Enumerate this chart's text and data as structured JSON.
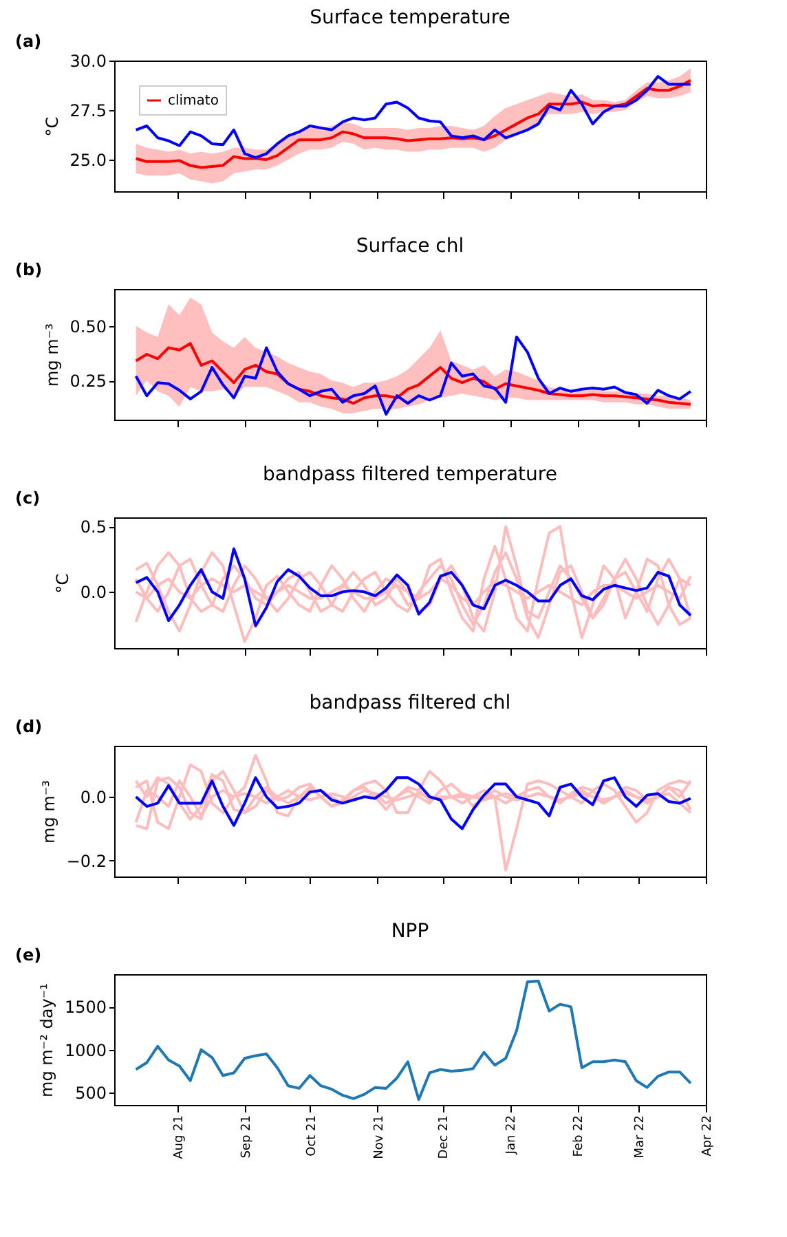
{
  "chart_data": [
    {
      "type": "line",
      "title": "Surface temperature",
      "ylabel": "°C",
      "annotations": [
        "(a)"
      ],
      "legend": "top left",
      "tick_labels": "y",
      "grid": false,
      "xlim": [
        "2021-07-03",
        "2022-04-01"
      ],
      "ylim": [
        23.4,
        30.0
      ],
      "yticks": [
        {
          "value": 25.0,
          "label": "25.0"
        },
        {
          "value": 27.5,
          "label": "27.5"
        },
        {
          "value": 30.0,
          "label": "30.0"
        }
      ],
      "xticks": [
        {
          "value": "2021-08-01",
          "label": null
        },
        {
          "value": "2021-09-01",
          "label": null
        },
        {
          "value": "2021-10-01",
          "label": null
        },
        {
          "value": "2021-11-01",
          "label": null
        },
        {
          "value": "2021-12-01",
          "label": null
        },
        {
          "value": "2022-01-01",
          "label": null
        },
        {
          "value": "2022-02-01",
          "label": null
        },
        {
          "value": "2022-03-01",
          "label": null
        },
        {
          "value": "2022-04-01",
          "label": null
        }
      ],
      "x": [
        "2021-07-13",
        "2021-07-18",
        "2021-07-23",
        "2021-07-28",
        "2021-08-02",
        "2021-08-07",
        "2021-08-12",
        "2021-08-17",
        "2021-08-22",
        "2021-08-27",
        "2021-09-01",
        "2021-09-06",
        "2021-09-11",
        "2021-09-16",
        "2021-09-21",
        "2021-09-26",
        "2021-10-01",
        "2021-10-06",
        "2021-10-11",
        "2021-10-16",
        "2021-10-21",
        "2021-10-26",
        "2021-10-31",
        "2021-11-05",
        "2021-11-10",
        "2021-11-15",
        "2021-11-20",
        "2021-11-25",
        "2021-11-30",
        "2021-12-05",
        "2021-12-10",
        "2021-12-15",
        "2021-12-20",
        "2021-12-25",
        "2021-12-30",
        "2022-01-04",
        "2022-01-09",
        "2022-01-14",
        "2022-01-19",
        "2022-01-24",
        "2022-01-29",
        "2022-02-03",
        "2022-02-08",
        "2022-02-13",
        "2022-02-18",
        "2022-02-23",
        "2022-02-28",
        "2022-03-05",
        "2022-03-10",
        "2022-03-15",
        "2022-03-20",
        "2022-03-25"
      ],
      "series": [
        {
          "name": "climato",
          "color": "#ff0000",
          "values": [
            25.05,
            24.9,
            24.9,
            24.9,
            24.95,
            24.7,
            24.6,
            24.65,
            24.7,
            25.15,
            25.05,
            25.05,
            25.0,
            25.2,
            25.6,
            26.0,
            26.0,
            26.0,
            26.1,
            26.4,
            26.3,
            26.1,
            26.1,
            26.1,
            26.05,
            25.95,
            26.0,
            26.05,
            26.05,
            26.1,
            26.05,
            26.1,
            26.0,
            26.2,
            26.5,
            26.8,
            27.1,
            27.3,
            27.8,
            27.8,
            27.8,
            27.9,
            27.7,
            27.75,
            27.7,
            27.8,
            28.2,
            28.6,
            28.5,
            28.5,
            28.7,
            29.0
          ],
          "upper": [
            25.8,
            25.6,
            25.5,
            25.4,
            25.5,
            25.3,
            25.4,
            25.3,
            25.4,
            25.6,
            25.6,
            25.5,
            25.5,
            25.8,
            26.2,
            26.5,
            26.6,
            26.6,
            26.7,
            26.9,
            26.8,
            26.6,
            26.6,
            26.6,
            26.6,
            26.5,
            26.6,
            26.6,
            26.7,
            26.7,
            26.6,
            26.5,
            26.7,
            27.2,
            27.6,
            27.8,
            28.0,
            28.2,
            28.4,
            28.3,
            28.2,
            28.3,
            28.0,
            28.0,
            27.9,
            28.0,
            28.5,
            28.9,
            28.9,
            29.0,
            29.2,
            29.6
          ],
          "lower": [
            24.3,
            24.2,
            24.2,
            24.2,
            24.3,
            24.0,
            23.9,
            23.8,
            23.9,
            24.3,
            24.4,
            24.5,
            24.5,
            24.7,
            25.0,
            25.3,
            25.5,
            25.5,
            25.6,
            25.9,
            25.8,
            25.5,
            25.6,
            25.5,
            25.5,
            25.4,
            25.4,
            25.5,
            25.5,
            25.6,
            25.6,
            25.6,
            25.4,
            25.6,
            26.0,
            26.2,
            26.5,
            26.9,
            27.3,
            27.3,
            27.3,
            27.4,
            27.3,
            27.4,
            27.4,
            27.5,
            27.9,
            28.2,
            28.1,
            28.1,
            28.2,
            28.4
          ]
        },
        {
          "color": "#0000ff",
          "values": [
            26.5,
            26.7,
            26.1,
            25.95,
            25.7,
            26.4,
            26.2,
            25.8,
            25.75,
            26.5,
            25.3,
            25.1,
            25.3,
            25.8,
            26.2,
            26.4,
            26.7,
            26.6,
            26.5,
            26.9,
            27.1,
            27.0,
            27.1,
            27.8,
            27.9,
            27.6,
            27.1,
            26.95,
            26.9,
            26.2,
            26.1,
            26.2,
            26.0,
            26.5,
            26.1,
            26.3,
            26.5,
            26.8,
            27.7,
            27.5,
            28.5,
            27.8,
            26.8,
            27.4,
            27.7,
            27.7,
            28.0,
            28.5,
            29.2,
            28.8,
            28.8,
            28.8
          ]
        }
      ]
    },
    {
      "type": "line",
      "title": "Surface chl",
      "ylabel": "mg m⁻³",
      "annotations": [
        "(b)"
      ],
      "tick_labels": "y",
      "grid": false,
      "xlim": [
        "2021-07-03",
        "2022-04-01"
      ],
      "ylim": [
        0.07,
        0.67
      ],
      "yticks": [
        {
          "value": 0.25,
          "label": "0.25"
        },
        {
          "value": 0.5,
          "label": "0.50"
        }
      ],
      "xticks": [
        {
          "value": "2021-08-01",
          "label": null
        },
        {
          "value": "2021-09-01",
          "label": null
        },
        {
          "value": "2021-10-01",
          "label": null
        },
        {
          "value": "2021-11-01",
          "label": null
        },
        {
          "value": "2021-12-01",
          "label": null
        },
        {
          "value": "2022-01-01",
          "label": null
        },
        {
          "value": "2022-02-01",
          "label": null
        },
        {
          "value": "2022-03-01",
          "label": null
        },
        {
          "value": "2022-04-01",
          "label": null
        }
      ],
      "x": [
        "2021-07-13",
        "2021-07-18",
        "2021-07-23",
        "2021-07-28",
        "2021-08-02",
        "2021-08-07",
        "2021-08-12",
        "2021-08-17",
        "2021-08-22",
        "2021-08-27",
        "2021-09-01",
        "2021-09-06",
        "2021-09-11",
        "2021-09-16",
        "2021-09-21",
        "2021-09-26",
        "2021-10-01",
        "2021-10-06",
        "2021-10-11",
        "2021-10-16",
        "2021-10-21",
        "2021-10-26",
        "2021-10-31",
        "2021-11-05",
        "2021-11-10",
        "2021-11-15",
        "2021-11-20",
        "2021-11-25",
        "2021-11-30",
        "2021-12-05",
        "2021-12-10",
        "2021-12-15",
        "2021-12-20",
        "2021-12-25",
        "2021-12-30",
        "2022-01-04",
        "2022-01-09",
        "2022-01-14",
        "2022-01-19",
        "2022-01-24",
        "2022-01-29",
        "2022-02-03",
        "2022-02-08",
        "2022-02-13",
        "2022-02-18",
        "2022-02-23",
        "2022-02-28",
        "2022-03-05",
        "2022-03-10",
        "2022-03-15",
        "2022-03-20",
        "2022-03-25"
      ],
      "series": [
        {
          "color": "#ff0000",
          "values": [
            0.34,
            0.37,
            0.35,
            0.4,
            0.39,
            0.42,
            0.32,
            0.34,
            0.29,
            0.24,
            0.3,
            0.32,
            0.29,
            0.28,
            0.235,
            0.21,
            0.2,
            0.18,
            0.17,
            0.165,
            0.145,
            0.17,
            0.18,
            0.18,
            0.17,
            0.21,
            0.23,
            0.27,
            0.31,
            0.26,
            0.24,
            0.26,
            0.245,
            0.21,
            0.235,
            0.225,
            0.215,
            0.205,
            0.19,
            0.185,
            0.18,
            0.18,
            0.185,
            0.18,
            0.18,
            0.175,
            0.17,
            0.165,
            0.16,
            0.15,
            0.145,
            0.14
          ],
          "upper": [
            0.5,
            0.47,
            0.45,
            0.6,
            0.55,
            0.63,
            0.6,
            0.47,
            0.43,
            0.4,
            0.45,
            0.4,
            0.38,
            0.36,
            0.33,
            0.31,
            0.29,
            0.28,
            0.25,
            0.24,
            0.22,
            0.24,
            0.24,
            0.25,
            0.27,
            0.3,
            0.35,
            0.4,
            0.48,
            0.34,
            0.32,
            0.3,
            0.32,
            0.27,
            0.3,
            0.29,
            0.27,
            0.25,
            0.22,
            0.21,
            0.2,
            0.2,
            0.21,
            0.2,
            0.2,
            0.2,
            0.19,
            0.19,
            0.18,
            0.18,
            0.17,
            0.16
          ],
          "lower": [
            0.18,
            0.25,
            0.2,
            0.18,
            0.13,
            0.22,
            0.2,
            0.2,
            0.21,
            0.18,
            0.22,
            0.22,
            0.22,
            0.2,
            0.18,
            0.15,
            0.15,
            0.13,
            0.12,
            0.1,
            0.1,
            0.11,
            0.12,
            0.12,
            0.12,
            0.13,
            0.14,
            0.16,
            0.17,
            0.18,
            0.19,
            0.18,
            0.17,
            0.16,
            0.17,
            0.17,
            0.16,
            0.16,
            0.16,
            0.16,
            0.16,
            0.16,
            0.16,
            0.15,
            0.15,
            0.15,
            0.14,
            0.14,
            0.13,
            0.12,
            0.12,
            0.12
          ]
        },
        {
          "color": "#0000ff",
          "values": [
            0.27,
            0.18,
            0.24,
            0.235,
            0.205,
            0.165,
            0.2,
            0.31,
            0.23,
            0.17,
            0.27,
            0.26,
            0.4,
            0.29,
            0.235,
            0.21,
            0.18,
            0.2,
            0.21,
            0.15,
            0.18,
            0.19,
            0.225,
            0.095,
            0.18,
            0.145,
            0.18,
            0.16,
            0.18,
            0.33,
            0.27,
            0.28,
            0.225,
            0.215,
            0.15,
            0.45,
            0.38,
            0.26,
            0.19,
            0.215,
            0.2,
            0.21,
            0.215,
            0.21,
            0.22,
            0.195,
            0.185,
            0.145,
            0.205,
            0.18,
            0.165,
            0.2
          ]
        }
      ]
    },
    {
      "type": "line",
      "title": "bandpass filtered temperature",
      "ylabel": "°C",
      "annotations": [
        "(c)"
      ],
      "tick_labels": "y",
      "grid": false,
      "xlim": [
        "2021-07-03",
        "2022-04-01"
      ],
      "ylim": [
        -0.43,
        0.57
      ],
      "yticks": [
        {
          "value": 0.0,
          "label": "0.0"
        },
        {
          "value": 0.5,
          "label": "0.5"
        }
      ],
      "xticks": [
        {
          "value": "2021-08-01",
          "label": null
        },
        {
          "value": "2021-09-01",
          "label": null
        },
        {
          "value": "2021-10-01",
          "label": null
        },
        {
          "value": "2021-11-01",
          "label": null
        },
        {
          "value": "2021-12-01",
          "label": null
        },
        {
          "value": "2022-01-01",
          "label": null
        },
        {
          "value": "2022-02-01",
          "label": null
        },
        {
          "value": "2022-03-01",
          "label": null
        },
        {
          "value": "2022-04-01",
          "label": null
        }
      ],
      "x": [
        "2021-07-13",
        "2021-07-18",
        "2021-07-23",
        "2021-07-28",
        "2021-08-02",
        "2021-08-07",
        "2021-08-12",
        "2021-08-17",
        "2021-08-22",
        "2021-08-27",
        "2021-09-01",
        "2021-09-06",
        "2021-09-11",
        "2021-09-16",
        "2021-09-21",
        "2021-09-26",
        "2021-10-01",
        "2021-10-06",
        "2021-10-11",
        "2021-10-16",
        "2021-10-21",
        "2021-10-26",
        "2021-10-31",
        "2021-11-05",
        "2021-11-10",
        "2021-11-15",
        "2021-11-20",
        "2021-11-25",
        "2021-11-30",
        "2021-12-05",
        "2021-12-10",
        "2021-12-15",
        "2021-12-20",
        "2021-12-25",
        "2021-12-30",
        "2022-01-04",
        "2022-01-09",
        "2022-01-14",
        "2022-01-19",
        "2022-01-24",
        "2022-01-29",
        "2022-02-03",
        "2022-02-08",
        "2022-02-13",
        "2022-02-18",
        "2022-02-23",
        "2022-02-28",
        "2022-03-05",
        "2022-03-10",
        "2022-03-15",
        "2022-03-20",
        "2022-03-25"
      ],
      "series": [
        {
          "color": "#ffbcbc",
          "values": [
            0.17,
            0.22,
            0.05,
            -0.15,
            -0.3,
            -0.1,
            0.15,
            0.3,
            0.2,
            -0.1,
            -0.38,
            -0.2,
            0.05,
            0.12,
            0.0,
            -0.1,
            -0.15,
            0.05,
            0.2,
            0.1,
            -0.05,
            -0.15,
            0.0,
            0.1,
            0.05,
            -0.1,
            -0.05,
            0.2,
            0.25,
            0.0,
            -0.2,
            -0.3,
            0.1,
            0.35,
            0.1,
            -0.2,
            -0.3,
            0.1,
            0.45,
            0.5,
            0.0,
            -0.35,
            -0.1,
            0.2,
            0.1,
            -0.2,
            0.0,
            0.25,
            0.2,
            -0.1,
            -0.25,
            -0.2
          ]
        },
        {
          "color": "#ffbcbc",
          "values": [
            -0.23,
            0.0,
            0.2,
            0.3,
            0.2,
            -0.05,
            -0.15,
            -0.1,
            0.1,
            0.2,
            0.1,
            -0.05,
            -0.1,
            0.0,
            0.1,
            0.15,
            0.0,
            -0.15,
            -0.1,
            0.05,
            0.15,
            0.05,
            -0.1,
            -0.05,
            0.1,
            0.0,
            -0.15,
            -0.1,
            0.1,
            0.2,
            0.05,
            -0.2,
            -0.3,
            0.0,
            0.5,
            0.2,
            -0.15,
            -0.2,
            0.0,
            0.2,
            0.1,
            -0.05,
            -0.2,
            -0.05,
            0.1,
            0.15,
            0.0,
            -0.15,
            0.1,
            0.25,
            0.1,
            -0.2
          ]
        },
        {
          "color": "#ffbcbc",
          "values": [
            0.0,
            -0.05,
            0.05,
            0.1,
            0.0,
            -0.05,
            0.05,
            0.1,
            0.05,
            0.0,
            0.05,
            0.0,
            -0.05,
            0.0,
            0.05,
            0.0,
            -0.05,
            -0.05,
            0.0,
            0.05,
            0.0,
            -0.05,
            -0.05,
            0.0,
            0.05,
            0.0,
            -0.05,
            0.0,
            0.1,
            0.05,
            -0.05,
            -0.1,
            0.0,
            0.08,
            0.05,
            0.0,
            -0.05,
            0.0,
            0.05,
            0.0,
            -0.05,
            -0.1,
            0.0,
            0.05,
            0.05,
            0.0,
            -0.05,
            0.0,
            0.05,
            0.0,
            -0.05,
            0.12
          ]
        },
        {
          "color": "#ffbcbc",
          "values": [
            0.1,
            -0.05,
            -0.15,
            0.0,
            0.2,
            0.25,
            0.05,
            -0.1,
            -0.15,
            0.05,
            0.2,
            0.1,
            -0.05,
            -0.15,
            -0.05,
            0.1,
            0.15,
            0.05,
            -0.1,
            -0.15,
            0.0,
            0.1,
            0.15,
            0.0,
            -0.1,
            -0.15,
            0.0,
            0.1,
            0.2,
            0.1,
            -0.1,
            -0.25,
            -0.1,
            0.15,
            0.3,
            0.1,
            -0.2,
            -0.35,
            -0.1,
            0.15,
            0.2,
            0.0,
            -0.2,
            -0.1,
            0.1,
            0.25,
            0.1,
            -0.1,
            -0.25,
            -0.1,
            0.1,
            0.05
          ]
        },
        {
          "color": "#0000ff",
          "values": [
            0.07,
            0.11,
            0.0,
            -0.22,
            -0.1,
            0.05,
            0.17,
            0.0,
            -0.05,
            0.33,
            0.1,
            -0.26,
            -0.12,
            0.08,
            0.17,
            0.12,
            0.03,
            -0.03,
            -0.03,
            0.0,
            0.01,
            0.0,
            -0.03,
            0.03,
            0.13,
            0.05,
            -0.17,
            -0.08,
            0.12,
            0.15,
            0.05,
            -0.1,
            -0.13,
            0.05,
            0.09,
            0.05,
            0.0,
            -0.07,
            -0.07,
            0.05,
            0.1,
            -0.03,
            -0.06,
            0.02,
            0.05,
            0.03,
            0.01,
            0.03,
            0.15,
            0.12,
            -0.1,
            -0.18
          ]
        }
      ]
    },
    {
      "type": "line",
      "title": "bandpass filtered chl",
      "ylabel": "mg m⁻³",
      "annotations": [
        "(d)"
      ],
      "tick_labels": "y",
      "grid": false,
      "xlim": [
        "2021-07-03",
        "2022-04-01"
      ],
      "ylim": [
        -0.25,
        0.16
      ],
      "yticks": [
        {
          "value": -0.2,
          "label": "−0.2"
        },
        {
          "value": 0.0,
          "label": "0.0"
        }
      ],
      "xticks": [
        {
          "value": "2021-08-01",
          "label": null
        },
        {
          "value": "2021-09-01",
          "label": null
        },
        {
          "value": "2021-10-01",
          "label": null
        },
        {
          "value": "2021-11-01",
          "label": null
        },
        {
          "value": "2021-12-01",
          "label": null
        },
        {
          "value": "2022-01-01",
          "label": null
        },
        {
          "value": "2022-02-01",
          "label": null
        },
        {
          "value": "2022-03-01",
          "label": null
        },
        {
          "value": "2022-04-01",
          "label": null
        }
      ],
      "x": [
        "2021-07-13",
        "2021-07-18",
        "2021-07-23",
        "2021-07-28",
        "2021-08-02",
        "2021-08-07",
        "2021-08-12",
        "2021-08-17",
        "2021-08-22",
        "2021-08-27",
        "2021-09-01",
        "2021-09-06",
        "2021-09-11",
        "2021-09-16",
        "2021-09-21",
        "2021-09-26",
        "2021-10-01",
        "2021-10-06",
        "2021-10-11",
        "2021-10-16",
        "2021-10-21",
        "2021-10-26",
        "2021-10-31",
        "2021-11-05",
        "2021-11-10",
        "2021-11-15",
        "2021-11-20",
        "2021-11-25",
        "2021-11-30",
        "2021-12-05",
        "2021-12-10",
        "2021-12-15",
        "2021-12-20",
        "2021-12-25",
        "2021-12-30",
        "2022-01-04",
        "2022-01-09",
        "2022-01-14",
        "2022-01-19",
        "2022-01-24",
        "2022-01-29",
        "2022-02-03",
        "2022-02-08",
        "2022-02-13",
        "2022-02-18",
        "2022-02-23",
        "2022-02-28",
        "2022-03-05",
        "2022-03-10",
        "2022-03-15",
        "2022-03-20",
        "2022-03-25"
      ],
      "series": [
        {
          "color": "#ffbcbc",
          "values": [
            0.03,
            0.05,
            -0.08,
            -0.1,
            0.0,
            0.1,
            0.08,
            -0.02,
            -0.05,
            0.0,
            0.03,
            0.13,
            0.05,
            -0.05,
            -0.06,
            0.0,
            0.03,
            0.0,
            -0.03,
            -0.02,
            0.02,
            0.03,
            0.0,
            -0.04,
            0.0,
            0.03,
            0.02,
            -0.01,
            0.0,
            0.0,
            0.0,
            0.0,
            0.0,
            0.0,
            -0.23,
            -0.1,
            0.04,
            0.05,
            0.04,
            0.02,
            0.0,
            -0.02,
            0.02,
            0.04,
            0.02,
            -0.03,
            -0.08,
            -0.05,
            0.02,
            0.04,
            0.05,
            0.04
          ]
        },
        {
          "color": "#ffbcbc",
          "values": [
            -0.09,
            -0.1,
            0.05,
            0.06,
            0.03,
            -0.05,
            -0.07,
            0.05,
            0.08,
            0.02,
            -0.05,
            -0.03,
            0.02,
            -0.01,
            0.0,
            0.03,
            0.04,
            0.0,
            -0.03,
            -0.01,
            0.02,
            0.04,
            0.05,
            0.02,
            -0.05,
            -0.05,
            0.02,
            0.08,
            0.05,
            0.0,
            -0.02,
            0.0,
            0.02,
            0.0,
            -0.02,
            0.0,
            0.02,
            0.03,
            0.0,
            -0.02,
            0.01,
            0.03,
            0.02,
            -0.02,
            0.0,
            0.03,
            0.02,
            -0.01,
            0.0,
            0.03,
            0.02,
            -0.04
          ]
        },
        {
          "color": "#ffbcbc",
          "values": [
            0.05,
            0.0,
            0.06,
            0.04,
            -0.02,
            -0.07,
            -0.03,
            0.07,
            0.05,
            -0.04,
            -0.05,
            0.0,
            0.03,
            0.0,
            -0.02,
            0.0,
            0.02,
            0.02,
            0.0,
            -0.02,
            0.0,
            0.02,
            0.01,
            -0.02,
            0.0,
            0.02,
            0.0,
            -0.02,
            0.02,
            0.04,
            0.01,
            -0.03,
            0.0,
            0.02,
            0.0,
            -0.01,
            0.0,
            0.01,
            0.0,
            -0.01,
            0.0,
            0.02,
            0.0,
            -0.02,
            0.0,
            0.02,
            0.0,
            -0.02,
            0.0,
            0.03,
            0.0,
            0.05
          ]
        },
        {
          "color": "#ffbcbc",
          "values": [
            -0.08,
            0.02,
            0.0,
            -0.03,
            0.05,
            0.0,
            -0.06,
            0.0,
            0.02,
            0.0,
            0.01,
            0.0,
            -0.02,
            0.0,
            0.02,
            0.0,
            -0.01,
            0.0,
            0.01,
            0.0,
            -0.01,
            0.0,
            0.01,
            0.0,
            -0.01,
            0.0,
            0.01,
            0.0,
            -0.01,
            0.0,
            0.01,
            0.0,
            -0.01,
            0.0,
            0.01,
            0.0,
            0.0,
            0.01,
            0.0,
            -0.01,
            0.0,
            0.01,
            0.0,
            -0.01,
            0.0,
            0.01,
            0.0,
            -0.01,
            0.0,
            0.01,
            -0.02,
            -0.05
          ]
        },
        {
          "color": "#0000ff",
          "values": [
            0.0,
            -0.03,
            -0.02,
            0.035,
            -0.02,
            -0.02,
            -0.02,
            0.05,
            -0.03,
            -0.09,
            -0.02,
            0.06,
            0.0,
            -0.035,
            -0.03,
            -0.02,
            0.015,
            0.02,
            -0.01,
            -0.02,
            -0.01,
            0.0,
            -0.005,
            0.02,
            0.06,
            0.06,
            0.04,
            0.0,
            -0.01,
            -0.07,
            -0.1,
            -0.04,
            0.005,
            0.04,
            0.04,
            0.0,
            -0.01,
            -0.02,
            -0.06,
            0.03,
            0.04,
            0.0,
            -0.025,
            0.05,
            0.06,
            0.0,
            -0.03,
            0.005,
            0.01,
            -0.015,
            -0.02,
            -0.005
          ]
        }
      ]
    },
    {
      "type": "line",
      "title": "NPP",
      "ylabel": "mg m⁻² day⁻¹",
      "annotations": [
        "(e)"
      ],
      "grid": false,
      "xlim": [
        "2021-07-03",
        "2022-04-01"
      ],
      "ylim": [
        357,
        1880
      ],
      "yticks": [
        500,
        1000,
        1500
      ],
      "xticks": [
        {
          "value": "2021-08-01",
          "label": "Aug 21"
        },
        {
          "value": "2021-09-01",
          "label": "Sep 21"
        },
        {
          "value": "2021-10-01",
          "label": "Oct 21"
        },
        {
          "value": "2021-11-01",
          "label": "Nov 21"
        },
        {
          "value": "2021-12-01",
          "label": "Dec 21"
        },
        {
          "value": "2022-01-01",
          "label": "Jan 22"
        },
        {
          "value": "2022-02-01",
          "label": "Feb 22"
        },
        {
          "value": "2022-03-01",
          "label": "Mar 22"
        },
        {
          "value": "2022-04-01",
          "label": "Apr 22"
        }
      ],
      "x": [
        "2021-07-13",
        "2021-07-18",
        "2021-07-23",
        "2021-07-28",
        "2021-08-02",
        "2021-08-07",
        "2021-08-12",
        "2021-08-17",
        "2021-08-22",
        "2021-08-27",
        "2021-09-01",
        "2021-09-06",
        "2021-09-11",
        "2021-09-16",
        "2021-09-21",
        "2021-09-26",
        "2021-10-01",
        "2021-10-06",
        "2021-10-11",
        "2021-10-16",
        "2021-10-21",
        "2021-10-26",
        "2021-10-31",
        "2021-11-05",
        "2021-11-10",
        "2021-11-15",
        "2021-11-20",
        "2021-11-25",
        "2021-11-30",
        "2021-12-05",
        "2021-12-10",
        "2021-12-15",
        "2021-12-20",
        "2021-12-25",
        "2021-12-30",
        "2022-01-04",
        "2022-01-09",
        "2022-01-14",
        "2022-01-19",
        "2022-01-24",
        "2022-01-29",
        "2022-02-03",
        "2022-02-08",
        "2022-02-13",
        "2022-02-18",
        "2022-02-23",
        "2022-02-28",
        "2022-03-05",
        "2022-03-10",
        "2022-03-15",
        "2022-03-20",
        "2022-03-25"
      ],
      "series": [
        {
          "color": "#1f77b4",
          "values": [
            770,
            850,
            1040,
            880,
            810,
            640,
            1000,
            910,
            700,
            730,
            900,
            930,
            950,
            790,
            580,
            550,
            700,
            580,
            540,
            470,
            430,
            480,
            560,
            550,
            670,
            860,
            420,
            730,
            770,
            750,
            760,
            780,
            970,
            820,
            900,
            1220,
            1790,
            1800,
            1450,
            1530,
            1500,
            790,
            860,
            860,
            880,
            860,
            640,
            560,
            690,
            740,
            740,
            610
          ]
        }
      ]
    }
  ]
}
